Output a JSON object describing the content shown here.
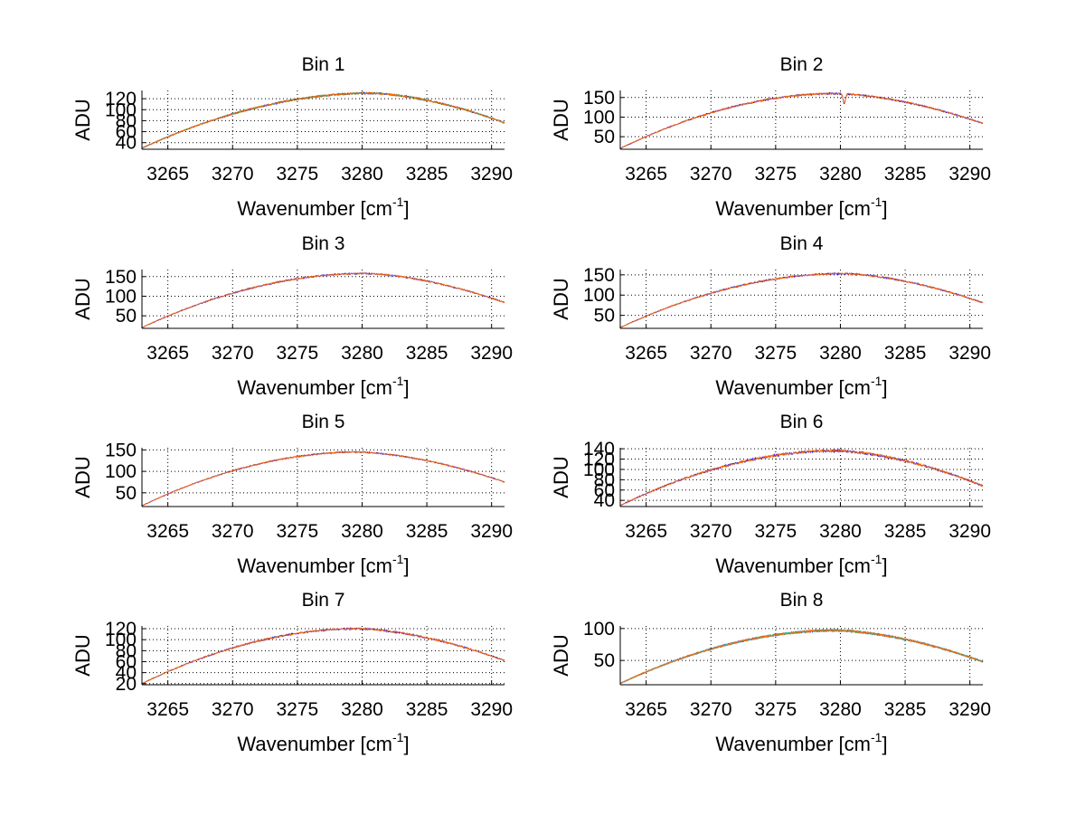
{
  "figure": {
    "background": "#ffffff"
  },
  "chart_data": [
    {
      "type": "line",
      "title": "Bin 1",
      "xlabel": "Wavenumber [cm",
      "xlabel_sup": "-1",
      "xlabel_close": "]",
      "ylabel": "ADU",
      "xlim": [
        3263,
        3291
      ],
      "ylim": [
        28,
        135
      ],
      "xticks": [
        3265,
        3270,
        3275,
        3280,
        3285,
        3290
      ],
      "yticks": [
        40,
        60,
        80,
        100,
        120
      ],
      "ytick_labels": [
        "40",
        "60",
        "80",
        "100",
        "120"
      ],
      "grid": true,
      "peak_center": 3280.5,
      "profile": {
        "start": 30,
        "peak": 130,
        "end": 76
      },
      "noise": 1.5,
      "dips": [],
      "series": [
        {
          "name": "series-1",
          "color": "#0000ff"
        },
        {
          "name": "series-2",
          "color": "#2ca02c"
        },
        {
          "name": "series-3",
          "color": "#ff6600"
        }
      ]
    },
    {
      "type": "line",
      "title": "Bin 2",
      "xlabel": "Wavenumber [cm",
      "xlabel_sup": "-1",
      "xlabel_close": "]",
      "ylabel": "ADU",
      "xlim": [
        3263,
        3291
      ],
      "ylim": [
        18,
        168
      ],
      "xticks": [
        3265,
        3270,
        3275,
        3280,
        3285,
        3290
      ],
      "yticks": [
        50,
        100,
        150
      ],
      "ytick_labels": [
        "50",
        "100",
        "150"
      ],
      "grid": true,
      "peak_center": 3279.5,
      "profile": {
        "start": 20,
        "peak": 160,
        "end": 84
      },
      "noise": 2,
      "dips": [
        {
          "x": 3280.3,
          "depth": 25
        }
      ],
      "series": [
        {
          "name": "series-1",
          "color": "#0000ff"
        },
        {
          "name": "series-2",
          "color": "#ff6600"
        }
      ]
    },
    {
      "type": "line",
      "title": "Bin 3",
      "xlabel": "Wavenumber [cm",
      "xlabel_sup": "-1",
      "xlabel_close": "]",
      "ylabel": "ADU",
      "xlim": [
        3263,
        3291
      ],
      "ylim": [
        18,
        168
      ],
      "xticks": [
        3265,
        3270,
        3275,
        3280,
        3285,
        3290
      ],
      "yticks": [
        50,
        100,
        150
      ],
      "ytick_labels": [
        "50",
        "100",
        "150"
      ],
      "grid": true,
      "peak_center": 3280,
      "profile": {
        "start": 20,
        "peak": 158,
        "end": 84
      },
      "noise": 1.8,
      "dips": [],
      "series": [
        {
          "name": "series-1",
          "color": "#0000ff"
        },
        {
          "name": "series-2",
          "color": "#ff6600"
        }
      ]
    },
    {
      "type": "line",
      "title": "Bin 4",
      "xlabel": "Wavenumber [cm",
      "xlabel_sup": "-1",
      "xlabel_close": "]",
      "ylabel": "ADU",
      "xlim": [
        3263,
        3291
      ],
      "ylim": [
        18,
        163
      ],
      "xticks": [
        3265,
        3270,
        3275,
        3280,
        3285,
        3290
      ],
      "yticks": [
        50,
        100,
        150
      ],
      "ytick_labels": [
        "50",
        "100",
        "150"
      ],
      "grid": true,
      "peak_center": 3280,
      "profile": {
        "start": 20,
        "peak": 153,
        "end": 81
      },
      "noise": 1.8,
      "dips": [],
      "series": [
        {
          "name": "series-1",
          "color": "#0000ff"
        },
        {
          "name": "series-2",
          "color": "#ff6600"
        }
      ]
    },
    {
      "type": "line",
      "title": "Bin 5",
      "xlabel": "Wavenumber [cm",
      "xlabel_sup": "-1",
      "xlabel_close": "]",
      "ylabel": "ADU",
      "xlim": [
        3263,
        3291
      ],
      "ylim": [
        18,
        155
      ],
      "xticks": [
        3265,
        3270,
        3275,
        3280,
        3285,
        3290
      ],
      "yticks": [
        50,
        100,
        150
      ],
      "ytick_labels": [
        "50",
        "100",
        "150"
      ],
      "grid": true,
      "peak_center": 3279.5,
      "profile": {
        "start": 20,
        "peak": 145,
        "end": 75
      },
      "noise": 1.5,
      "dips": [],
      "series": [
        {
          "name": "series-1",
          "color": "#0000ff"
        },
        {
          "name": "series-2",
          "color": "#ff6600"
        }
      ]
    },
    {
      "type": "line",
      "title": "Bin 6",
      "xlabel": "Wavenumber [cm",
      "xlabel_sup": "-1",
      "xlabel_close": "]",
      "ylabel": "ADU",
      "xlim": [
        3263,
        3291
      ],
      "ylim": [
        28,
        142
      ],
      "xticks": [
        3265,
        3270,
        3275,
        3280,
        3285,
        3290
      ],
      "yticks": [
        40,
        60,
        80,
        100,
        120,
        140
      ],
      "ytick_labels": [
        "40",
        "60",
        "80",
        "100",
        "120",
        "140"
      ],
      "grid": true,
      "peak_center": 3279.5,
      "profile": {
        "start": 30,
        "peak": 136,
        "end": 68
      },
      "noise": 2.2,
      "dips": [],
      "series": [
        {
          "name": "series-1",
          "color": "#0000ff"
        },
        {
          "name": "series-2",
          "color": "#ff6600"
        }
      ]
    },
    {
      "type": "line",
      "title": "Bin 7",
      "xlabel": "Wavenumber [cm",
      "xlabel_sup": "-1",
      "xlabel_close": "]",
      "ylabel": "ADU",
      "xlim": [
        3263,
        3291
      ],
      "ylim": [
        18,
        125
      ],
      "xticks": [
        3265,
        3270,
        3275,
        3280,
        3285,
        3290
      ],
      "yticks": [
        20,
        40,
        60,
        80,
        100,
        120
      ],
      "ytick_labels": [
        "20",
        "40",
        "60",
        "80",
        "100",
        "120"
      ],
      "grid": true,
      "peak_center": 3279.5,
      "profile": {
        "start": 20,
        "peak": 120,
        "end": 62
      },
      "noise": 1.5,
      "dips": [],
      "series": [
        {
          "name": "series-1",
          "color": "#0000ff"
        },
        {
          "name": "series-2",
          "color": "#ff6600"
        }
      ]
    },
    {
      "type": "line",
      "title": "Bin 8",
      "xlabel": "Wavenumber [cm",
      "xlabel_sup": "-1",
      "xlabel_close": "]",
      "ylabel": "ADU",
      "xlim": [
        3263,
        3291
      ],
      "ylim": [
        12,
        104
      ],
      "xticks": [
        3265,
        3270,
        3275,
        3280,
        3285,
        3290
      ],
      "yticks": [
        50,
        100
      ],
      "ytick_labels": [
        "50",
        "100"
      ],
      "grid": true,
      "peak_center": 3279.5,
      "profile": {
        "start": 14,
        "peak": 97,
        "end": 48
      },
      "noise": 1.5,
      "dips": [],
      "series": [
        {
          "name": "series-1",
          "color": "#0000ff"
        },
        {
          "name": "series-2",
          "color": "#2ca02c"
        },
        {
          "name": "series-3",
          "color": "#17becf"
        },
        {
          "name": "series-4",
          "color": "#ff6600"
        }
      ]
    }
  ]
}
